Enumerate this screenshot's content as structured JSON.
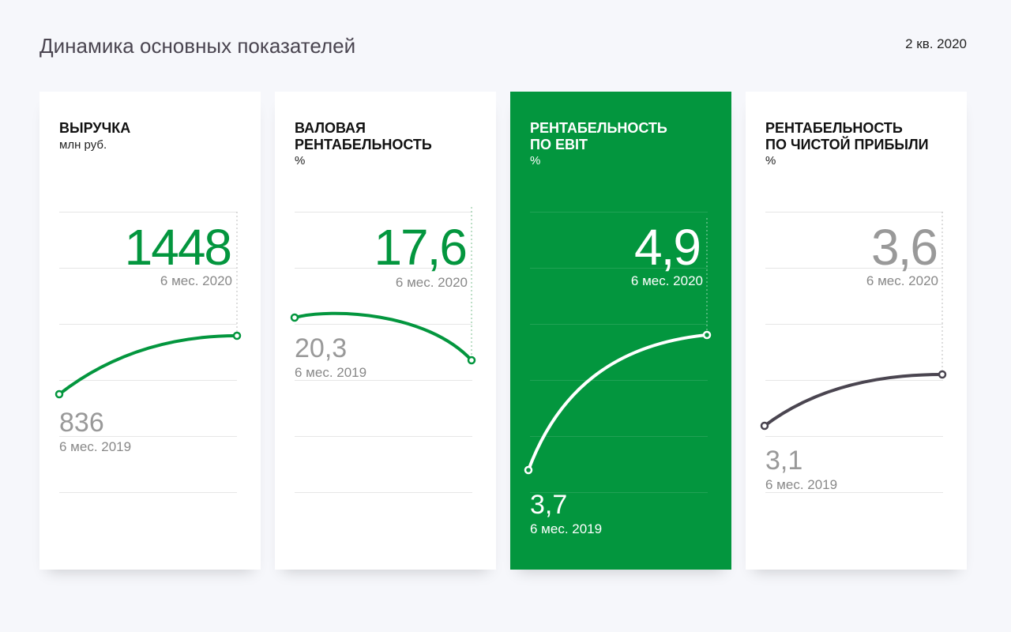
{
  "header": {
    "title": "Динамика основных показателей",
    "period": "2 кв. 2020"
  },
  "chart_data": [
    {
      "type": "line",
      "title": "ВЫРУЧКА",
      "unit": "млн руб.",
      "x": [
        "6 мес. 2019",
        "6 мес. 2020"
      ],
      "values": [
        836,
        1448
      ],
      "labels": [
        "836",
        "1448"
      ],
      "color": "#03963e"
    },
    {
      "type": "line",
      "title": "ВАЛОВАЯ\nРЕНТАБЕЛЬНОСТЬ",
      "unit": "%",
      "x": [
        "6 мес. 2019",
        "6 мес. 2020"
      ],
      "values": [
        20.3,
        17.6
      ],
      "labels": [
        "20,3",
        "17,6"
      ],
      "color": "#03963e"
    },
    {
      "type": "line",
      "title": "РЕНТАБЕЛЬНОСТЬ\nПО EBIT",
      "unit": "%",
      "x": [
        "6 мес. 2019",
        "6 мес. 2020"
      ],
      "values": [
        3.7,
        4.9
      ],
      "labels": [
        "3,7",
        "4,9"
      ],
      "color": "#ffffff"
    },
    {
      "type": "line",
      "title": "РЕНТАБЕЛЬНОСТЬ\nПО ЧИСТОЙ ПРИБЫЛИ",
      "unit": "%",
      "x": [
        "6 мес. 2019",
        "6 мес. 2020"
      ],
      "values": [
        3.1,
        3.6
      ],
      "labels": [
        "3,1",
        "3,6"
      ],
      "color": "#4a4550"
    }
  ]
}
